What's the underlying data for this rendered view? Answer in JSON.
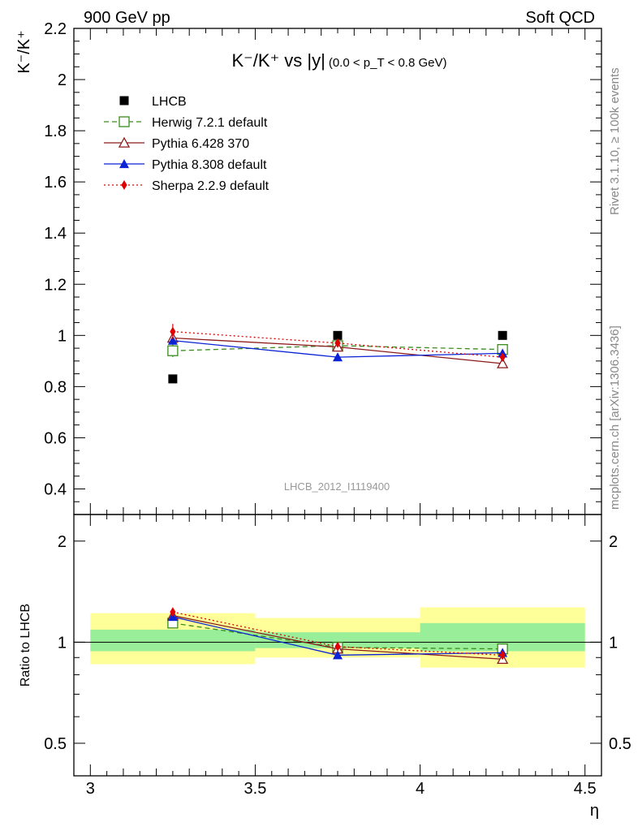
{
  "header": {
    "left": "900 GeV pp",
    "right": "Soft QCD"
  },
  "side_labels": {
    "rivet": "Rivet 3.1.10, ≥ 100k events",
    "mcplots": "mcplots.cern.ch [arXiv:1306.3436]"
  },
  "watermark": "LHCB_2012_I1119400",
  "chart_data": [
    {
      "type": "line",
      "title": {
        "main": "K⁻/K⁺ vs |y|",
        "range": "(0.0 < p_T < 0.8 GeV)"
      },
      "ylabel": "K⁻/K⁺",
      "xlabel": "η",
      "xlim": [
        2.95,
        4.55
      ],
      "ylim": [
        0.3,
        2.2
      ],
      "xticks": [
        "3",
        "3.5",
        "4",
        "4.5"
      ],
      "yticks": [
        "0.4",
        "0.6",
        "0.8",
        "1",
        "1.2",
        "1.4",
        "1.6",
        "1.8",
        "2",
        "2.2"
      ],
      "legend_position": "top-left",
      "series": [
        {
          "name": "LHCB",
          "style": "marker",
          "marker": "filled-square",
          "color": "#000000",
          "x": [
            3.25,
            3.75,
            4.25
          ],
          "y": [
            0.83,
            1.0,
            1.0
          ]
        },
        {
          "name": "Herwig 7.2.1 default",
          "style": "dashed",
          "marker": "open-square",
          "color": "#3a8c1c",
          "x": [
            3.25,
            3.75,
            4.25
          ],
          "y": [
            0.94,
            0.96,
            0.945
          ],
          "err": [
            0.025,
            0.01,
            0.012
          ]
        },
        {
          "name": "Pythia 6.428 370",
          "style": "solid",
          "marker": "open-triangle",
          "color": "#8b1a1a",
          "x": [
            3.25,
            3.75,
            4.25
          ],
          "y": [
            0.99,
            0.955,
            0.89
          ],
          "err": [
            0.01,
            0.01,
            0.01
          ]
        },
        {
          "name": "Pythia 8.308 default",
          "style": "solid",
          "marker": "filled-triangle",
          "color": "#0b22d6",
          "x": [
            3.25,
            3.75,
            4.25
          ],
          "y": [
            0.98,
            0.915,
            0.93
          ],
          "err": [
            0.01,
            0.01,
            0.01
          ]
        },
        {
          "name": "Sherpa 2.2.9 default",
          "style": "dotted",
          "marker": "filled-diamond",
          "color": "#e00000",
          "x": [
            3.25,
            3.75,
            4.25
          ],
          "y": [
            1.015,
            0.97,
            0.915
          ],
          "err": [
            0.03,
            0.012,
            0.012
          ]
        }
      ]
    },
    {
      "type": "line",
      "ylabel": "Ratio to LHCB",
      "xlabel": "η",
      "xlim": [
        2.95,
        4.55
      ],
      "ylim": [
        0.4,
        2.4
      ],
      "y_scale": "log",
      "yticks": [
        "0.5",
        "1",
        "2"
      ],
      "reference_line": 1.0,
      "bands": [
        {
          "x": [
            3.0,
            3.5
          ],
          "inner": [
            0.94,
            1.09
          ],
          "outer": [
            0.86,
            1.22
          ]
        },
        {
          "x": [
            3.5,
            4.0
          ],
          "inner": [
            0.96,
            1.07
          ],
          "outer": [
            0.9,
            1.18
          ]
        },
        {
          "x": [
            4.0,
            4.5
          ],
          "inner": [
            0.94,
            1.14
          ],
          "outer": [
            0.84,
            1.27
          ]
        }
      ],
      "series": [
        {
          "name": "Herwig 7.2.1 default",
          "x": [
            3.25,
            3.75,
            4.25
          ],
          "y": [
            1.14,
            0.965,
            0.955
          ]
        },
        {
          "name": "Pythia 6.428 370",
          "x": [
            3.25,
            3.75,
            4.25
          ],
          "y": [
            1.2,
            0.955,
            0.89
          ]
        },
        {
          "name": "Pythia 8.308 default",
          "x": [
            3.25,
            3.75,
            4.25
          ],
          "y": [
            1.19,
            0.915,
            0.93
          ]
        },
        {
          "name": "Sherpa 2.2.9 default",
          "x": [
            3.25,
            3.75,
            4.25
          ],
          "y": [
            1.23,
            0.97,
            0.915
          ]
        }
      ]
    }
  ]
}
